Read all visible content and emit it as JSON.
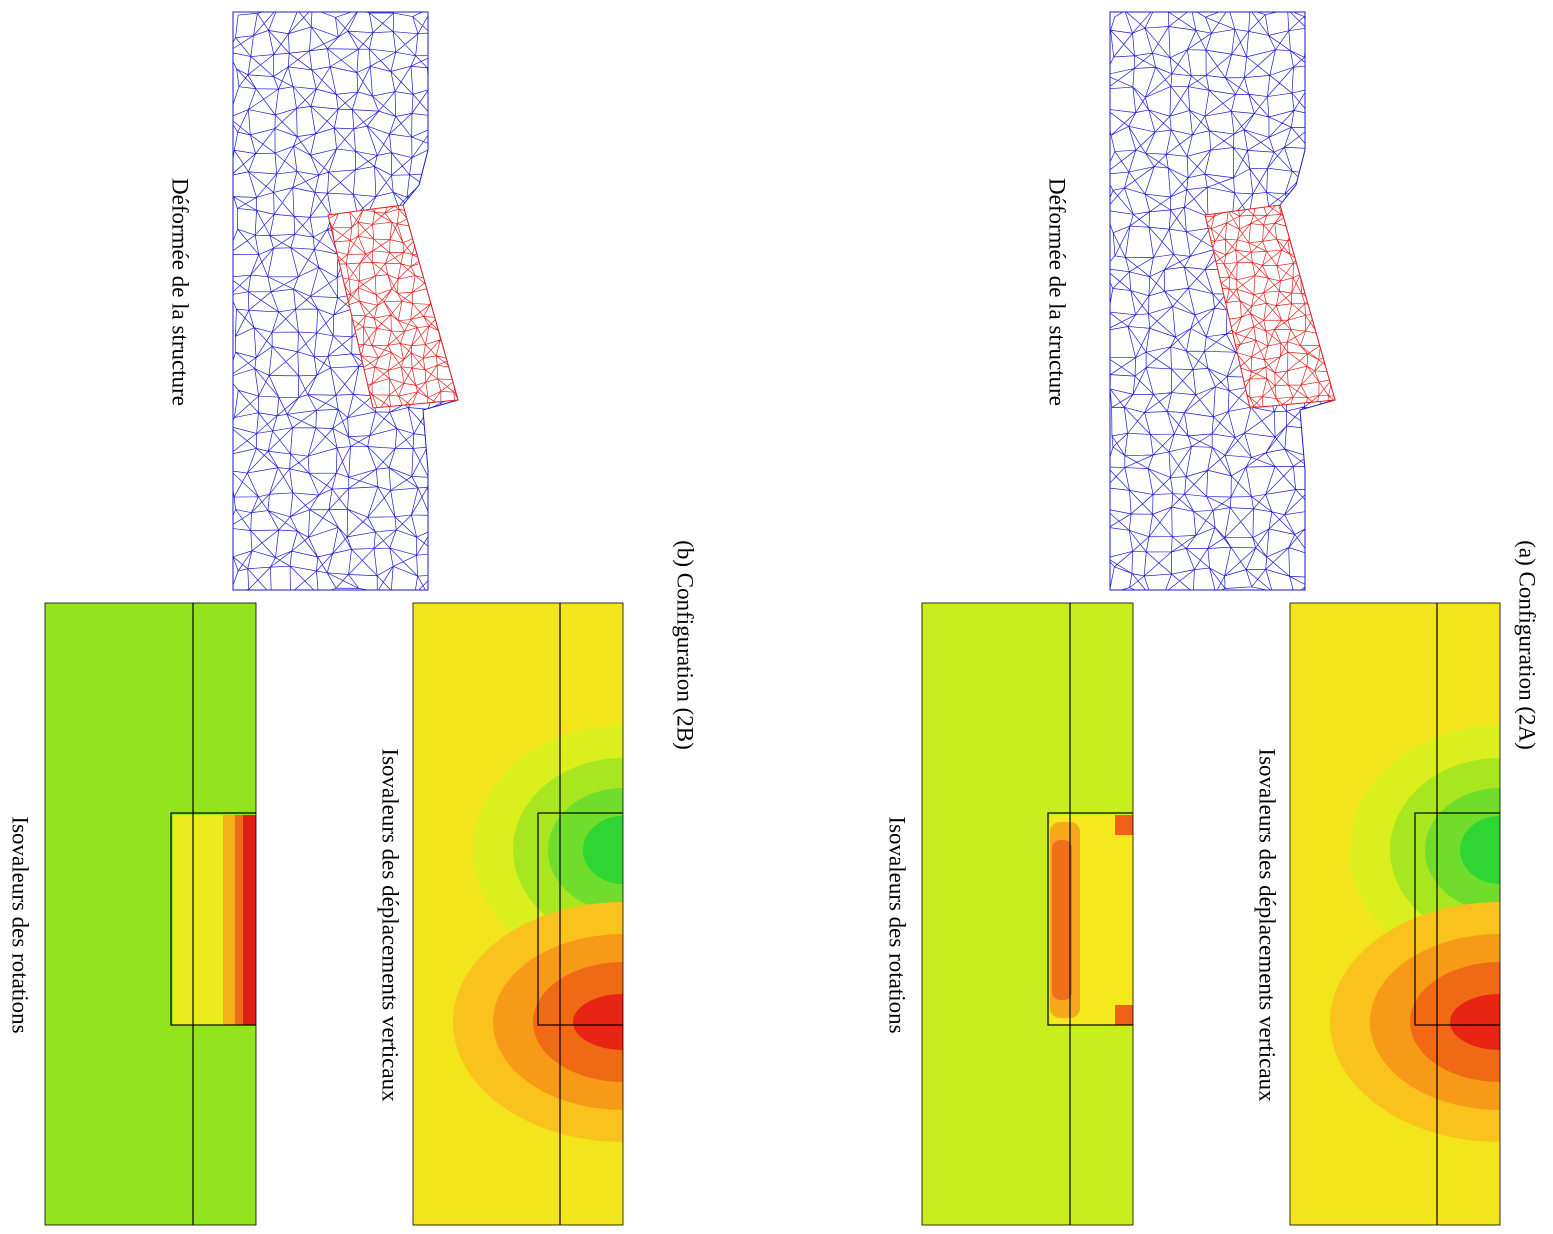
{
  "panels": [
    {
      "caption": "(a) Configuration (2A)",
      "deformed_label": "Déformée de la structure",
      "displacement_label": "Isovaleurs des déplacements verticaux",
      "rotation_label": "Isovaleurs des rotations"
    },
    {
      "caption": "(b) Configuration (2B)",
      "deformed_label": "Déformée de la structure",
      "displacement_label": "Isovaleurs des déplacements verticaux",
      "rotation_label": "Isovaleurs des rotations"
    }
  ]
}
